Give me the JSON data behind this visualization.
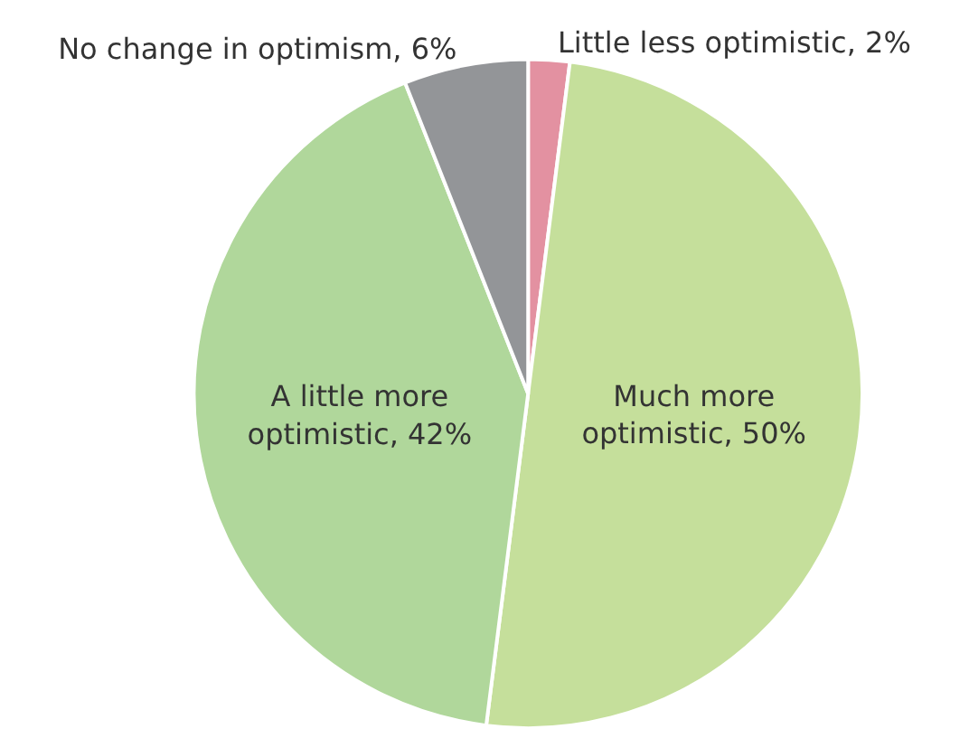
{
  "chart_data": {
    "type": "pie",
    "categories": [
      "Little less optimistic",
      "Much more optimistic",
      "A little more optimistic",
      "No change in optimism"
    ],
    "values": [
      2,
      50,
      42,
      6
    ],
    "value_labels": [
      "2%",
      "50%",
      "42%",
      "6%"
    ],
    "colors": [
      "#e391a1",
      "#c5df9b",
      "#b0d79b",
      "#939598"
    ],
    "legend": false
  }
}
